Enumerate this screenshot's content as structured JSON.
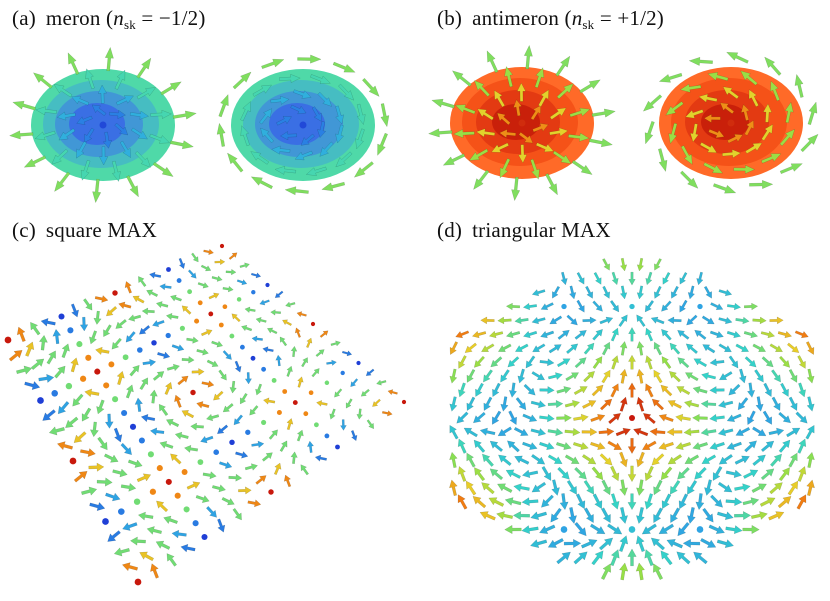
{
  "panels": [
    {
      "letter": "(a)",
      "name": "meron",
      "n_symbol": "n",
      "n_sub": "sk",
      "n_value": "= −1/2)"
    },
    {
      "letter": "(b)",
      "name": "antimeron",
      "n_symbol": "n",
      "n_sub": "sk",
      "n_value": "= +1/2)"
    },
    {
      "letter": "(c)",
      "name": "square MAX"
    },
    {
      "letter": "(d)",
      "name": "triangular MAX"
    }
  ],
  "colors": {
    "meron_outer": "#47d6ab",
    "meron_core": "#2f63e0",
    "antimeron_outer": "#ff5a1a",
    "antimeron_core": "#d11c08",
    "arrow_up": "#d2231a",
    "arrow_mid": "#8fe04a",
    "arrow_down": "#1f4fd8"
  }
}
